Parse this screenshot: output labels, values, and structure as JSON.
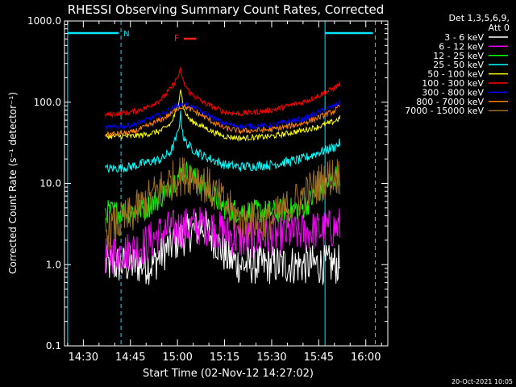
{
  "chart_data": {
    "type": "line",
    "title": "RHESSI Observing Summary Count Rates, Corrected",
    "xlabel": "Start Time (02-Nov-12 14:27:02)",
    "ylabel": "Corrected Count Rate (s⁻¹ detector⁻¹)",
    "yscale": "log",
    "ylim": [
      0.1,
      1000
    ],
    "xlim": [
      "14:24",
      "16:07"
    ],
    "x_ticks": [
      "14:30",
      "14:45",
      "15:00",
      "15:15",
      "15:30",
      "15:45",
      "16:00"
    ],
    "y_ticks": [
      "0.1",
      "1.0",
      "10.0",
      "100.0",
      "1000.0"
    ],
    "grid": false,
    "legend_header": [
      "Det 1,3,5,6,9,",
      "Att 0"
    ],
    "legend_position": "right",
    "annotations": {
      "night_label": "N",
      "flare_label": "F",
      "footer_date": "20-Oct-2021 10:05"
    },
    "markers": {
      "solid_lines": [
        "14:25",
        "15:47"
      ],
      "dashed_lines": [
        "14:42",
        "16:03"
      ],
      "night_bars": [
        [
          "14:25",
          "14:42"
        ],
        [
          "15:47",
          "16:03"
        ]
      ],
      "flare_bar": [
        "15:02",
        "15:06"
      ]
    },
    "series": [
      {
        "name": "3 - 6 keV",
        "color": "#ffffff",
        "x": [
          "14:37",
          "14:42",
          "14:48",
          "14:52",
          "14:56",
          "15:00",
          "15:04",
          "15:08",
          "15:12",
          "15:16",
          "15:20",
          "15:30",
          "15:40",
          "15:50",
          "15:52"
        ],
        "values": [
          1.0,
          1.0,
          1.0,
          1.0,
          1.5,
          2.0,
          2.5,
          3.0,
          2.0,
          1.2,
          1.0,
          1.0,
          1.0,
          1.0,
          1.0
        ]
      },
      {
        "name": "6 - 12 keV",
        "color": "#ff00ff",
        "x": [
          "14:37",
          "14:45",
          "14:50",
          "14:55",
          "15:00",
          "15:05",
          "15:10",
          "15:15",
          "15:20",
          "15:30",
          "15:40",
          "15:50",
          "15:52"
        ],
        "values": [
          1.3,
          1.5,
          1.8,
          2.5,
          2.8,
          3.0,
          3.0,
          2.5,
          2.0,
          2.3,
          2.5,
          2.8,
          3.0
        ]
      },
      {
        "name": "12 - 25 keV",
        "color": "#00ff00",
        "x": [
          "14:37",
          "14:45",
          "14:50",
          "14:55",
          "15:00",
          "15:02",
          "15:05",
          "15:10",
          "15:15",
          "15:20",
          "15:30",
          "15:40",
          "15:45",
          "15:50",
          "15:52"
        ],
        "values": [
          4.5,
          4.5,
          5.0,
          7.0,
          12.0,
          15.0,
          12.0,
          8.0,
          5.0,
          4.5,
          4.5,
          5.0,
          8.0,
          12.0,
          13.0
        ]
      },
      {
        "name": "25 - 50 keV",
        "color": "#00ffff",
        "x": [
          "14:37",
          "14:45",
          "14:50",
          "14:55",
          "14:58",
          "15:00",
          "15:01",
          "15:02",
          "15:04",
          "15:08",
          "15:12",
          "15:15",
          "15:20",
          "15:30",
          "15:40",
          "15:45",
          "15:50",
          "15:52"
        ],
        "values": [
          15,
          16,
          18,
          20,
          25,
          40,
          70,
          35,
          28,
          22,
          19,
          17,
          16,
          17,
          20,
          24,
          28,
          32
        ]
      },
      {
        "name": "50 - 100 keV",
        "color": "#ffff00",
        "x": [
          "14:37",
          "14:45",
          "14:50",
          "14:55",
          "14:58",
          "15:00",
          "15:01",
          "15:02",
          "15:04",
          "15:08",
          "15:12",
          "15:15",
          "15:20",
          "15:30",
          "15:40",
          "15:45",
          "15:50",
          "15:52"
        ],
        "values": [
          38,
          38,
          40,
          45,
          55,
          85,
          150,
          80,
          60,
          50,
          42,
          38,
          36,
          38,
          45,
          50,
          58,
          65
        ]
      },
      {
        "name": "100 - 300 keV",
        "color": "#ff0000",
        "x": [
          "14:37",
          "14:45",
          "14:50",
          "14:55",
          "14:58",
          "15:00",
          "15:01",
          "15:02",
          "15:04",
          "15:08",
          "15:12",
          "15:15",
          "15:20",
          "15:30",
          "15:40",
          "15:45",
          "15:50",
          "15:52"
        ],
        "values": [
          70,
          75,
          85,
          110,
          150,
          200,
          250,
          170,
          130,
          100,
          85,
          75,
          72,
          80,
          100,
          120,
          150,
          170
        ]
      },
      {
        "name": "300 - 800 keV",
        "color": "#0000ff",
        "x": [
          "14:37",
          "14:45",
          "14:50",
          "14:55",
          "14:58",
          "15:00",
          "15:02",
          "15:04",
          "15:08",
          "15:12",
          "15:15",
          "15:20",
          "15:30",
          "15:40",
          "15:45",
          "15:50",
          "15:52"
        ],
        "values": [
          48,
          52,
          60,
          72,
          82,
          92,
          95,
          90,
          75,
          62,
          55,
          50,
          52,
          62,
          75,
          90,
          100
        ]
      },
      {
        "name": "800 - 7000 keV",
        "color": "#ff8000",
        "x": [
          "14:37",
          "14:45",
          "14:50",
          "14:55",
          "14:58",
          "15:00",
          "15:02",
          "15:04",
          "15:08",
          "15:12",
          "15:15",
          "15:20",
          "15:30",
          "15:40",
          "15:45",
          "15:50",
          "15:52"
        ],
        "values": [
          40,
          42,
          50,
          62,
          72,
          85,
          88,
          82,
          68,
          55,
          48,
          44,
          46,
          55,
          65,
          78,
          90
        ]
      },
      {
        "name": "7000 - 15000 keV",
        "color": "#a07020",
        "x": [
          "14:37",
          "14:40",
          "14:45",
          "14:50",
          "14:55",
          "15:00",
          "15:03",
          "15:06",
          "15:10",
          "15:15",
          "15:20",
          "15:30",
          "15:40",
          "15:45",
          "15:50",
          "15:52"
        ],
        "values": [
          2.5,
          3.0,
          4.0,
          6.0,
          9.0,
          12.0,
          13.0,
          12.0,
          9.0,
          5.5,
          3.5,
          3.5,
          7.0,
          10.0,
          13.0,
          12.0
        ]
      }
    ]
  }
}
